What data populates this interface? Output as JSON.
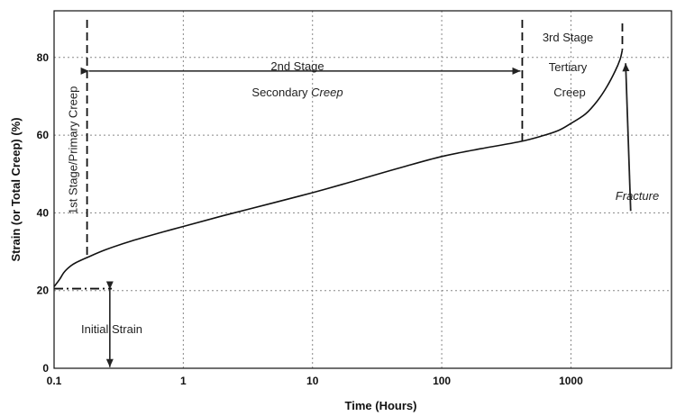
{
  "chart_data": {
    "type": "line",
    "title": "",
    "xlabel": "Time (Hours)",
    "ylabel": "Strain (or Total Creep) (%)",
    "x_scale": "log",
    "xlim": [
      0.1,
      6000
    ],
    "ylim": [
      0,
      92
    ],
    "x_ticks": [
      0.1,
      1,
      10,
      100,
      1000
    ],
    "x_tick_labels": [
      "0.1",
      "1",
      "10",
      "100",
      "1000"
    ],
    "y_ticks": [
      0,
      20,
      40,
      60,
      80
    ],
    "y_tick_labels": [
      "0",
      "20",
      "40",
      "60",
      "80"
    ],
    "grid": true,
    "series": [
      {
        "x": [
          0.1,
          0.11,
          0.12,
          0.135,
          0.15,
          0.18,
          0.25,
          0.4,
          0.7,
          1,
          2,
          5,
          10,
          20,
          50,
          100,
          200,
          400,
          600,
          800,
          1000,
          1300,
          1600,
          1900,
          2200,
          2400,
          2500
        ],
        "y": [
          21,
          22.8,
          24.8,
          26.4,
          27.3,
          28.5,
          30.5,
          32.8,
          35.1,
          36.5,
          39.2,
          42.6,
          45.2,
          48,
          51.8,
          54.5,
          56.5,
          58.3,
          59.8,
          61.2,
          63,
          65.5,
          68.8,
          72.5,
          76.5,
          79.5,
          82
        ]
      }
    ],
    "stage_boundaries": [
      0.18,
      420,
      2500
    ],
    "annotations": {
      "stage1": "1st Stage/Primary Creep",
      "stage2_line1": "2nd Stage",
      "stage2_line2_a": "Secondary ",
      "stage2_line2_b": "Creep",
      "stage3_line1": "3rd Stage",
      "stage3_line2": "Tertiary",
      "stage3_line3": "Creep",
      "fracture": "Fracture",
      "initial_strain": "Initial Strain"
    }
  }
}
